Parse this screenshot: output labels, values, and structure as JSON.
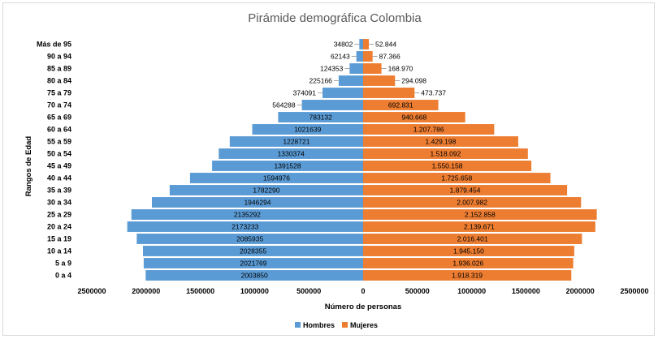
{
  "chart_data": {
    "type": "bar",
    "orientation": "horizontal",
    "title": "Pirámide demográfica Colombia",
    "xlabel": "Número de personas",
    "ylabel": "Rangos de Edad",
    "xlim": [
      -2500000,
      2500000
    ],
    "x_ticks": [
      -2500000,
      -2000000,
      -1500000,
      -1000000,
      -500000,
      0,
      500000,
      1000000,
      1500000,
      2000000,
      2500000
    ],
    "x_tick_labels": [
      "2500000",
      "2000000",
      "1500000",
      "1000000",
      "500000",
      "0",
      "500000",
      "1000000",
      "1500000",
      "2000000",
      "2500000"
    ],
    "grid": false,
    "legend_position": "bottom",
    "categories": [
      "0 a 4",
      "5 a 9",
      "10 a 14",
      "15 a 19",
      "20 a 24",
      "25 a 29",
      "30 a 34",
      "35 a 39",
      "40 a 44",
      "45 a 49",
      "50 a 54",
      "55 a 59",
      "60 a 64",
      "65 a 69",
      "70 a 74",
      "75 a 79",
      "80 a 84",
      "85 a 89",
      "90 a 94",
      "Más de 95"
    ],
    "series": [
      {
        "name": "Hombres",
        "color": "#5b9bd5",
        "values": [
          2003850,
          2021769,
          2028355,
          2085935,
          2173233,
          2135292,
          1946294,
          1782290,
          1594976,
          1391528,
          1330374,
          1228721,
          1021639,
          783132,
          564288,
          374091,
          225166,
          124353,
          62143,
          34802
        ],
        "labels": [
          "2003850",
          "2021769",
          "2028355",
          "2085935",
          "2173233",
          "2135292",
          "1946294",
          "1782290",
          "1594976",
          "1391528",
          "1330374",
          "1228721",
          "1021639",
          "783132",
          "564288",
          "374091",
          "225166",
          "124353",
          "62143",
          "34802"
        ]
      },
      {
        "name": "Mujeres",
        "color": "#ed7d31",
        "values": [
          1918319,
          1936026,
          1945150,
          2016401,
          2139671,
          2152858,
          2007982,
          1879454,
          1725658,
          1550158,
          1518092,
          1429198,
          1207786,
          940668,
          692831,
          473737,
          294098,
          168970,
          87366,
          52844
        ],
        "labels": [
          "1.918.319",
          "1.936.026",
          "1.945.150",
          "2.016.401",
          "2.139.671",
          "2.152.858",
          "2.007.982",
          "1.879.454",
          "1.725.658",
          "1.550.158",
          "1.518.092",
          "1.429.198",
          "1.207.786",
          "940.668",
          "692.831",
          "473.737",
          "294.098",
          "168.970",
          "87.366",
          "52.844"
        ]
      }
    ]
  }
}
